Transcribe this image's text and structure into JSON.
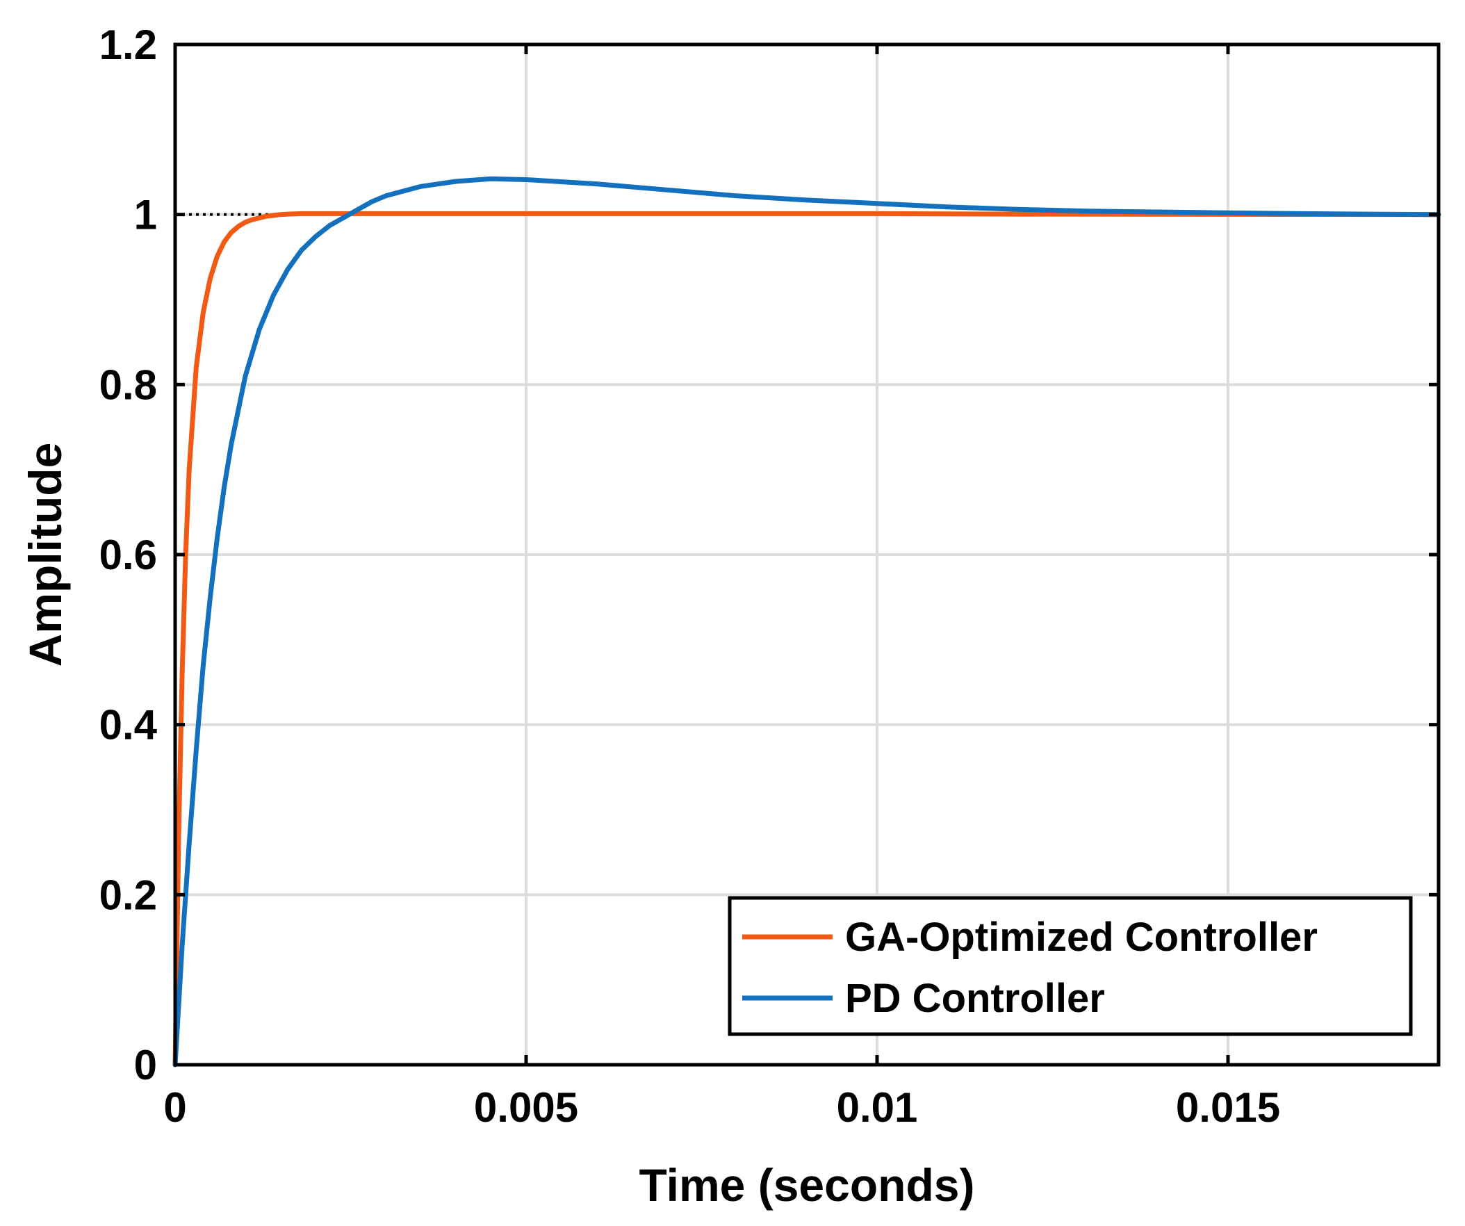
{
  "chart_data": {
    "type": "line",
    "title": "",
    "xlabel": "Time (seconds)",
    "ylabel": "Amplitude",
    "xlim": [
      0,
      0.018
    ],
    "ylim": [
      0,
      1.2
    ],
    "x_ticks": [
      0,
      0.005,
      0.01,
      0.015
    ],
    "x_tick_labels": [
      "0",
      "0.005",
      "0.01",
      "0.015"
    ],
    "y_ticks": [
      0,
      0.2,
      0.4,
      0.6,
      0.8,
      1,
      1.2
    ],
    "y_tick_labels": [
      "0",
      "0.2",
      "0.4",
      "0.6",
      "0.8",
      "1",
      "1.2"
    ],
    "grid": true,
    "legend_position": "bottom-right",
    "reference_line": {
      "y": 1,
      "style": "dotted",
      "color": "#000000"
    },
    "series": [
      {
        "name": "GA-Optimized Controller",
        "color": "#F05A14",
        "x": [
          0,
          5e-05,
          0.0001,
          0.00015,
          0.0002,
          0.0003,
          0.0004,
          0.0005,
          0.0006,
          0.0007,
          0.0008,
          0.0009,
          0.001,
          0.0011,
          0.0012,
          0.0013,
          0.0014,
          0.0015,
          0.0016,
          0.0018,
          0.002,
          0.0025,
          0.003,
          0.004,
          0.005,
          0.006,
          0.008,
          0.01,
          0.012,
          0.014,
          0.016,
          0.018
        ],
        "y": [
          0,
          0.27,
          0.46,
          0.6,
          0.7,
          0.82,
          0.885,
          0.925,
          0.951,
          0.968,
          0.979,
          0.986,
          0.991,
          0.994,
          0.996,
          0.998,
          0.999,
          1.0,
          1.0005,
          1.001,
          1.001,
          1.001,
          1.001,
          1.001,
          1.001,
          1.001,
          1.001,
          1.001,
          1.0005,
          1.0003,
          1.0001,
          1.0
        ]
      },
      {
        "name": "PD Controller",
        "color": "#1270BE",
        "x": [
          0,
          0.0001,
          0.0002,
          0.0003,
          0.0004,
          0.0005,
          0.0006,
          0.0007,
          0.0008,
          0.001,
          0.0012,
          0.0014,
          0.0016,
          0.0018,
          0.002,
          0.0022,
          0.0025,
          0.0028,
          0.003,
          0.0035,
          0.004,
          0.0045,
          0.005,
          0.006,
          0.007,
          0.008,
          0.009,
          0.01,
          0.011,
          0.012,
          0.013,
          0.014,
          0.015,
          0.016,
          0.017,
          0.018
        ],
        "y": [
          0,
          0.14,
          0.26,
          0.37,
          0.47,
          0.55,
          0.62,
          0.68,
          0.73,
          0.81,
          0.865,
          0.905,
          0.935,
          0.958,
          0.974,
          0.987,
          1.001,
          1.015,
          1.022,
          1.033,
          1.039,
          1.042,
          1.041,
          1.036,
          1.029,
          1.022,
          1.017,
          1.013,
          1.009,
          1.006,
          1.004,
          1.003,
          1.002,
          1.001,
          1.0005,
          1.0
        ]
      }
    ]
  }
}
